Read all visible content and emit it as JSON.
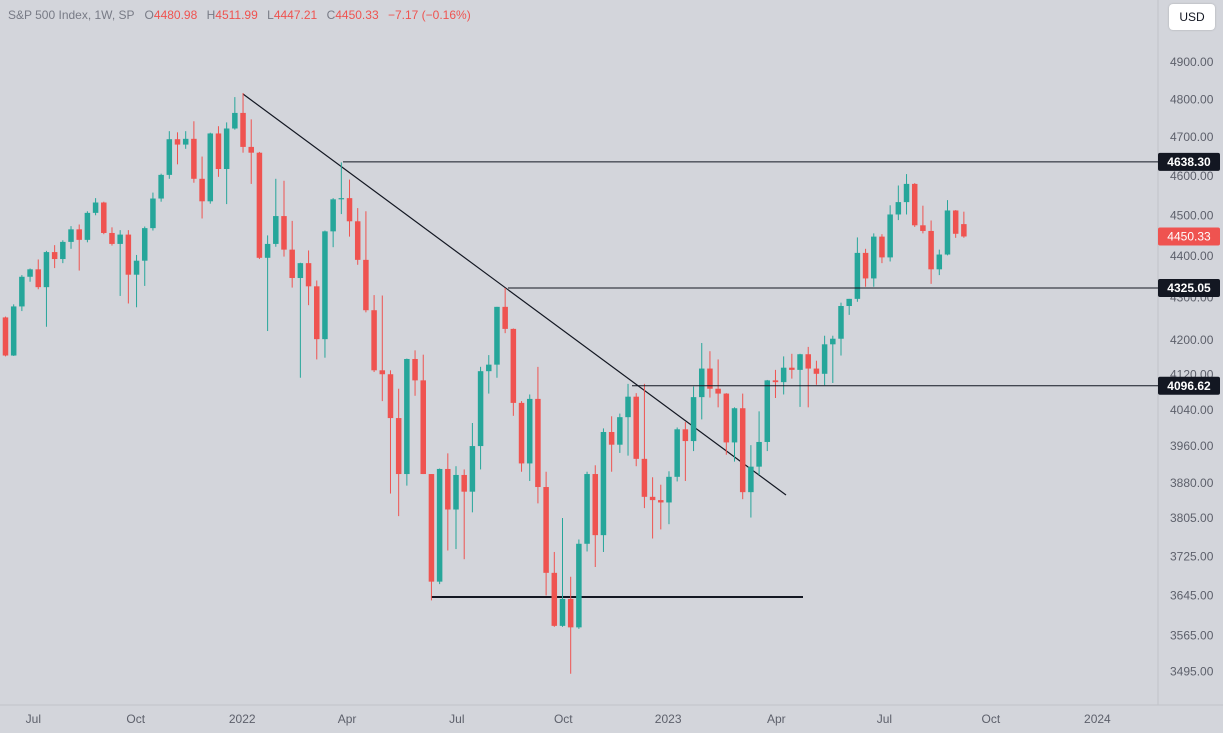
{
  "header": {
    "symbol": "S&P 500 Index, 1W, SP",
    "open_label": "O",
    "high_label": "H",
    "low_label": "L",
    "close_label": "C",
    "change": "−7.17 (−0.16%)"
  },
  "currency": "USD",
  "chart_data": {
    "type": "candlestick",
    "log_scale": true,
    "grid": false,
    "up_color": "#26a69a",
    "down_color": "#ef5350",
    "ylim": [
      3432,
      5074
    ],
    "yticks": [
      {
        "value": 4900,
        "label": "4900.00"
      },
      {
        "value": 4800,
        "label": "4800.00"
      },
      {
        "value": 4700,
        "label": "4700.00"
      },
      {
        "value": 4600,
        "label": "4600.00"
      },
      {
        "value": 4500,
        "label": "4500.00"
      },
      {
        "value": 4400,
        "label": "4400.00"
      },
      {
        "value": 4300,
        "label": "4300.00"
      },
      {
        "value": 4200,
        "label": "4200.00"
      },
      {
        "value": 4120,
        "label": "4120.00"
      },
      {
        "value": 4040,
        "label": "4040.00"
      },
      {
        "value": 3960,
        "label": "3960.00"
      },
      {
        "value": 3880,
        "label": "3880.00"
      },
      {
        "value": 3805,
        "label": "3805.00"
      },
      {
        "value": 3725,
        "label": "3725.00"
      },
      {
        "value": 3645,
        "label": "3645.00"
      },
      {
        "value": 3565,
        "label": "3565.00"
      },
      {
        "value": 3495,
        "label": "3495.00"
      }
    ],
    "xlim": [
      -0.67,
      140.7
    ],
    "xticks": [
      {
        "value": 3.4,
        "label": "Jul"
      },
      {
        "value": 15.9,
        "label": "Oct"
      },
      {
        "value": 28.9,
        "label": "2022"
      },
      {
        "value": 41.7,
        "label": "Apr"
      },
      {
        "value": 55.1,
        "label": "Jul"
      },
      {
        "value": 68.1,
        "label": "Oct"
      },
      {
        "value": 80.9,
        "label": "2023"
      },
      {
        "value": 94.1,
        "label": "Apr"
      },
      {
        "value": 107.3,
        "label": "Jul"
      },
      {
        "value": 120.3,
        "label": "Oct"
      },
      {
        "value": 133.3,
        "label": "2024"
      }
    ],
    "open": [
      4255,
      4166,
      4281,
      4352,
      4370,
      4327,
      4412,
      4395,
      4437,
      4468,
      4442,
      4509,
      4535,
      4459,
      4432,
      4455,
      4357,
      4391,
      4471,
      4545,
      4605,
      4697,
      4683,
      4698,
      4595,
      4538,
      4712,
      4620,
      4725,
      4766,
      4677,
      4662,
      4398,
      4432,
      4501,
      4418,
      4349,
      4385,
      4329,
      4204,
      4463,
      4543,
      4546,
      4488,
      4393,
      4272,
      4132,
      4123,
      4024,
      3901,
      4158,
      4109,
      3901,
      3675,
      3912,
      3825,
      3899,
      3863,
      3962,
      4130,
      4145,
      4280,
      4228,
      4058,
      3924,
      4067,
      3873,
      3693,
      3586,
      3640,
      3583,
      3753,
      3901,
      3771,
      3993,
      3965,
      4026,
      4072,
      3934,
      3852,
      3845,
      3840,
      3895,
      3999,
      3973,
      4071,
      4136,
      4090,
      4079,
      3970,
      4046,
      3862,
      3917,
      3971,
      4109,
      4105,
      4138,
      4133,
      4169,
      4136,
      4124,
      4192,
      4205,
      4282,
      4299,
      4410,
      4348,
      4450,
      4399,
      4505,
      4536,
      4582,
      4478,
      4464,
      4370,
      4406,
      4515,
      4480.98
    ],
    "high": [
      4257,
      4286,
      4356,
      4372,
      4394,
      4415,
      4429,
      4441,
      4476,
      4480,
      4513,
      4546,
      4537,
      4473,
      4466,
      4466,
      4405,
      4475,
      4560,
      4608,
      4718,
      4715,
      4718,
      4744,
      4652,
      4714,
      4731,
      4741,
      4808,
      4819,
      4749,
      4664,
      4453,
      4595,
      4590,
      4489,
      4386,
      4416,
      4343,
      4465,
      4546,
      4637,
      4593,
      4521,
      4513,
      4308,
      4307,
      4132,
      4090,
      4159,
      4178,
      4168,
      3901,
      3913,
      3946,
      3918,
      3911,
      4013,
      4140,
      4167,
      4280,
      4325,
      4229,
      4062,
      4077,
      4140,
      3906,
      3736,
      3807,
      3685,
      3762,
      3906,
      3920,
      4001,
      4028,
      4034,
      4101,
      4080,
      4101,
      3894,
      3878,
      3907,
      4003,
      4015,
      4095,
      4195,
      4176,
      4157,
      4080,
      4048,
      4079,
      3964,
      4039,
      4110,
      4133,
      4164,
      4170,
      4170,
      4186,
      4154,
      4212,
      4212,
      4290,
      4299,
      4448,
      4420,
      4458,
      4456,
      4528,
      4578,
      4607,
      4584,
      4527,
      4490,
      4418,
      4541,
      4516,
      4511.99
    ],
    "low": [
      4164,
      4165,
      4270,
      4340,
      4322,
      4233,
      4373,
      4385,
      4420,
      4367,
      4436,
      4503,
      4456,
      4428,
      4306,
      4288,
      4279,
      4330,
      4465,
      4537,
      4595,
      4632,
      4672,
      4585,
      4495,
      4532,
      4600,
      4531,
      4722,
      4662,
      4582,
      4395,
      4223,
      4425,
      4401,
      4326,
      4115,
      4284,
      4157,
      4161,
      4424,
      4506,
      4450,
      4381,
      4267,
      4128,
      4062,
      3859,
      3811,
      3876,
      4074,
      3901,
      3637,
      3670,
      3739,
      3742,
      3721,
      3819,
      3911,
      4079,
      4115,
      4218,
      4029,
      3906,
      3886,
      3838,
      3647,
      3584,
      3584,
      3492,
      3580,
      3737,
      3705,
      3736,
      3906,
      3947,
      3941,
      3918,
      3828,
      3764,
      3783,
      3794,
      3885,
      3886,
      3951,
      4021,
      4070,
      4048,
      3943,
      3928,
      3847,
      3808,
      3899,
      3951,
      4069,
      4077,
      4113,
      4049,
      4048,
      4099,
      4098,
      4103,
      4166,
      4261,
      4292,
      4328,
      4328,
      4385,
      4389,
      4491,
      4505,
      4474,
      4458,
      4335,
      4356,
      4404,
      4447,
      4447.21
    ],
    "close": [
      4166,
      4281,
      4352,
      4370,
      4327,
      4412,
      4395,
      4437,
      4468,
      4442,
      4509,
      4535,
      4459,
      4432,
      4455,
      4357,
      4391,
      4471,
      4545,
      4605,
      4697,
      4683,
      4698,
      4595,
      4538,
      4712,
      4620,
      4725,
      4766,
      4677,
      4662,
      4398,
      4432,
      4501,
      4418,
      4349,
      4385,
      4329,
      4204,
      4463,
      4543,
      4546,
      4488,
      4393,
      4272,
      4132,
      4123,
      4024,
      3901,
      4158,
      4109,
      3901,
      3675,
      3912,
      3825,
      3899,
      3863,
      3962,
      4130,
      4145,
      4280,
      4228,
      4058,
      3924,
      4067,
      3873,
      3693,
      3586,
      3640,
      3583,
      3753,
      3901,
      3771,
      3993,
      3965,
      4026,
      4072,
      3934,
      3852,
      3845,
      3840,
      3895,
      3999,
      3973,
      4071,
      4136,
      4090,
      4079,
      3970,
      4046,
      3862,
      3917,
      3971,
      4109,
      4105,
      4138,
      4133,
      4169,
      4136,
      4124,
      4192,
      4205,
      4282,
      4299,
      4410,
      4348,
      4450,
      4399,
      4505,
      4536,
      4582,
      4478,
      4464,
      4370,
      4406,
      4515,
      4457,
      4450.33
    ],
    "hlines": [
      {
        "value": 4638.3,
        "label": "4638.30"
      },
      {
        "value": 4325.05,
        "label": "4325.05"
      },
      {
        "value": 4096.62,
        "label": "4096.62"
      }
    ]
  }
}
